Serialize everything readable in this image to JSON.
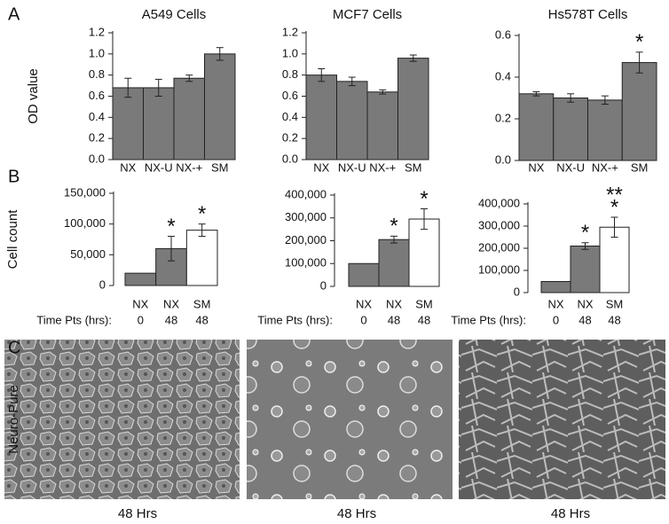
{
  "panel_labels": [
    "A",
    "B",
    "C"
  ],
  "chart_data": [
    {
      "type": "bar",
      "title": "A549 Cells",
      "ylabel": "OD value",
      "categories": [
        "NX",
        "NX-U",
        "NX-+",
        "SM"
      ],
      "values": [
        0.68,
        0.68,
        0.77,
        1.0
      ],
      "errors": [
        0.09,
        0.08,
        0.03,
        0.06
      ],
      "color": "#7a7a7a",
      "ylim": [
        0,
        1.2
      ],
      "yticks": [
        {
          "value": 0,
          "label": "0.0"
        },
        0.2,
        0.4,
        0.6,
        0.8,
        {
          "value": 1,
          "label": "1.0"
        },
        1.2
      ]
    },
    {
      "type": "bar",
      "title": "MCF7 Cells",
      "categories": [
        "NX",
        "NX-U",
        "NX-+",
        "SM"
      ],
      "values": [
        0.8,
        0.74,
        0.64,
        0.96
      ],
      "errors": [
        0.06,
        0.04,
        0.02,
        0.03
      ],
      "color": "#7a7a7a",
      "ylim": [
        0,
        1.2
      ],
      "yticks": [
        {
          "value": 0,
          "label": "0.0"
        },
        0.2,
        0.4,
        0.6,
        0.8,
        {
          "value": 1,
          "label": "1.0"
        },
        1.2
      ]
    },
    {
      "type": "bar",
      "title": "Hs578T Cells",
      "categories": [
        "NX",
        "NX-U",
        "NX-+",
        "SM"
      ],
      "values": [
        0.32,
        0.3,
        0.29,
        0.47
      ],
      "errors": [
        0.01,
        0.02,
        0.02,
        0.05
      ],
      "color": "#7a7a7a",
      "annotations": [
        null,
        null,
        null,
        [
          "*"
        ]
      ],
      "ylim": [
        0,
        0.6
      ],
      "yticks": [
        {
          "value": 0,
          "label": "0.0"
        },
        0.2,
        0.4,
        0.6
      ]
    },
    {
      "type": "bar",
      "ylabel": "Cell count",
      "categories": [
        "NX",
        "NX",
        "SM"
      ],
      "time_label": "Time Pts (hrs):",
      "time_points": [
        0,
        48,
        48
      ],
      "values": [
        20000,
        60000,
        90000
      ],
      "errors": [
        null,
        20000,
        10000
      ],
      "colors": [
        "#7a7a7a",
        "#7a7a7a",
        "#ffffff"
      ],
      "annotations": [
        null,
        [
          "*"
        ],
        [
          "*"
        ]
      ],
      "ylim": [
        0,
        150000
      ],
      "yticks": [
        0,
        {
          "value": 50000,
          "label": "50,000"
        },
        {
          "value": 100000,
          "label": "100,000"
        },
        {
          "value": 150000,
          "label": "150,000"
        }
      ]
    },
    {
      "type": "bar",
      "categories": [
        "NX",
        "NX",
        "SM"
      ],
      "time_label": "Time Pts (hrs):",
      "time_points": [
        0,
        48,
        48
      ],
      "values": [
        100000,
        205000,
        295000
      ],
      "errors": [
        null,
        15000,
        45000
      ],
      "colors": [
        "#7a7a7a",
        "#7a7a7a",
        "#ffffff"
      ],
      "annotations": [
        null,
        [
          "*"
        ],
        [
          "*"
        ]
      ],
      "ylim": [
        0,
        400000
      ],
      "yticks": [
        0,
        {
          "value": 100000,
          "label": "100,000"
        },
        {
          "value": 200000,
          "label": "200,000"
        },
        {
          "value": 300000,
          "label": "300,000"
        },
        {
          "value": 400000,
          "label": "400,000"
        }
      ]
    },
    {
      "type": "bar",
      "categories": [
        "NX",
        "NX",
        "SM"
      ],
      "time_label": "Time Pts (hrs):",
      "time_points": [
        0,
        48,
        48
      ],
      "values": [
        50000,
        210000,
        295000
      ],
      "errors": [
        null,
        15000,
        45000
      ],
      "colors": [
        "#7a7a7a",
        "#7a7a7a",
        "#ffffff"
      ],
      "annotations": [
        null,
        [
          "*"
        ],
        [
          "**",
          "*"
        ]
      ],
      "ylim": [
        0,
        400000
      ],
      "yticks": [
        0,
        {
          "value": 100000,
          "label": "100,000"
        },
        {
          "value": 200000,
          "label": "200,000"
        },
        {
          "value": 300000,
          "label": "300,000"
        },
        {
          "value": 400000,
          "label": "400,000"
        }
      ]
    }
  ],
  "panel_c": {
    "ylabel": "Neuro-Pure",
    "captions": [
      "48 Hrs",
      "48 Hrs",
      "48 Hrs"
    ]
  }
}
